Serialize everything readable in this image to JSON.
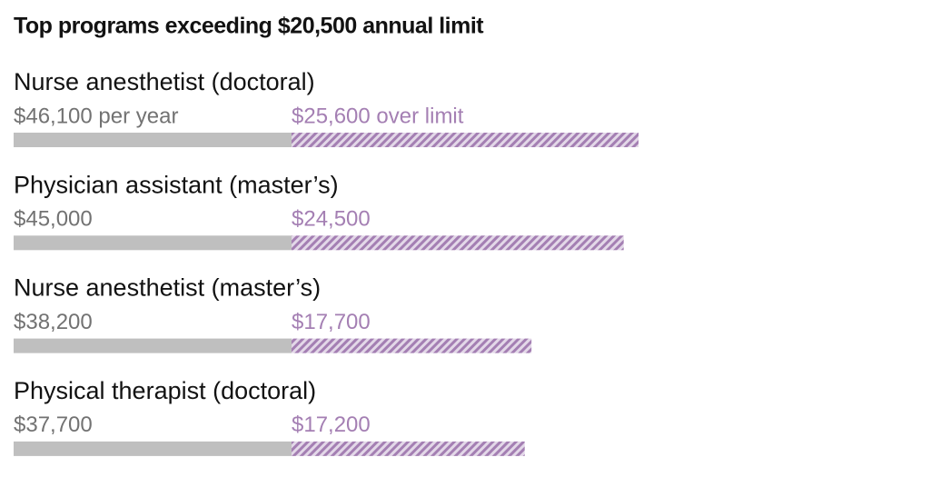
{
  "chart_data": {
    "type": "bar",
    "orientation": "horizontal",
    "title": "Top programs exceeding $20,500 annual limit",
    "limit": 20500,
    "categories": [
      "Nurse anesthetist (doctoral)",
      "Physician assistant (master’s)",
      "Nurse anesthetist (master’s)",
      "Physical therapist (doctoral)"
    ],
    "totals": [
      46100,
      45000,
      38200,
      37700
    ],
    "total_labels": [
      "$46,100 per year",
      "$45,000",
      "$38,200",
      "$37,700"
    ],
    "over_limit": [
      25600,
      24500,
      17700,
      17200
    ],
    "over_limit_labels": [
      "$25,600 over limit",
      "$24,500",
      "$17,700",
      "$17,200"
    ],
    "limit_color": "#bfbfbf",
    "over_color": "#a47fb3"
  }
}
